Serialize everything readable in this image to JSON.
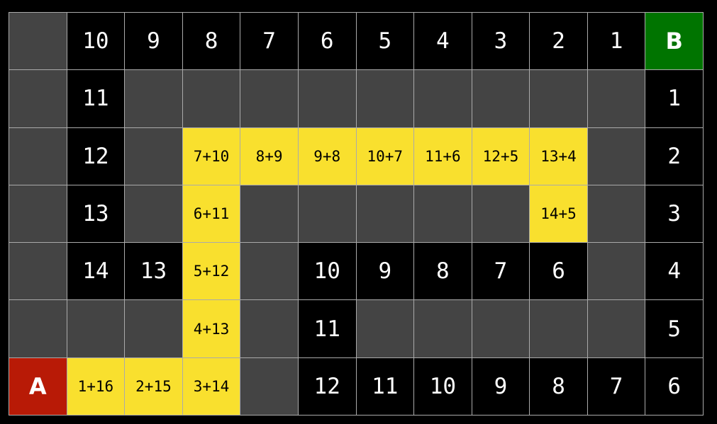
{
  "colors": {
    "wall": "#444444",
    "open": "#000000",
    "path": "#f9e02e",
    "start": "#b81a06",
    "goal": "#007400"
  },
  "grid": [
    [
      [
        "",
        "wall"
      ],
      [
        "10",
        "open"
      ],
      [
        "9",
        "open"
      ],
      [
        "8",
        "open"
      ],
      [
        "7",
        "open"
      ],
      [
        "6",
        "open"
      ],
      [
        "5",
        "open"
      ],
      [
        "4",
        "open"
      ],
      [
        "3",
        "open"
      ],
      [
        "2",
        "open"
      ],
      [
        "1",
        "open"
      ],
      [
        "B",
        "goal"
      ]
    ],
    [
      [
        "",
        "wall"
      ],
      [
        "11",
        "open"
      ],
      [
        "",
        "wall"
      ],
      [
        "",
        "wall"
      ],
      [
        "",
        "wall"
      ],
      [
        "",
        "wall"
      ],
      [
        "",
        "wall"
      ],
      [
        "",
        "wall"
      ],
      [
        "",
        "wall"
      ],
      [
        "",
        "wall"
      ],
      [
        "",
        "wall"
      ],
      [
        "1",
        "open"
      ]
    ],
    [
      [
        "",
        "wall"
      ],
      [
        "12",
        "open"
      ],
      [
        "",
        "wall"
      ],
      [
        "7+10",
        "path"
      ],
      [
        "8+9",
        "path"
      ],
      [
        "9+8",
        "path"
      ],
      [
        "10+7",
        "path"
      ],
      [
        "11+6",
        "path"
      ],
      [
        "12+5",
        "path"
      ],
      [
        "13+4",
        "path"
      ],
      [
        "",
        "wall"
      ],
      [
        "2",
        "open"
      ]
    ],
    [
      [
        "",
        "wall"
      ],
      [
        "13",
        "open"
      ],
      [
        "",
        "wall"
      ],
      [
        "6+11",
        "path"
      ],
      [
        "",
        "wall"
      ],
      [
        "",
        "wall"
      ],
      [
        "",
        "wall"
      ],
      [
        "",
        "wall"
      ],
      [
        "",
        "wall"
      ],
      [
        "14+5",
        "path"
      ],
      [
        "",
        "wall"
      ],
      [
        "3",
        "open"
      ]
    ],
    [
      [
        "",
        "wall"
      ],
      [
        "14",
        "open"
      ],
      [
        "13",
        "open"
      ],
      [
        "5+12",
        "path"
      ],
      [
        "",
        "wall"
      ],
      [
        "10",
        "open"
      ],
      [
        "9",
        "open"
      ],
      [
        "8",
        "open"
      ],
      [
        "7",
        "open"
      ],
      [
        "6",
        "open"
      ],
      [
        "",
        "wall"
      ],
      [
        "4",
        "open"
      ]
    ],
    [
      [
        "",
        "wall"
      ],
      [
        "",
        "wall"
      ],
      [
        "",
        "wall"
      ],
      [
        "4+13",
        "path"
      ],
      [
        "",
        "wall"
      ],
      [
        "11",
        "open"
      ],
      [
        "",
        "wall"
      ],
      [
        "",
        "wall"
      ],
      [
        "",
        "wall"
      ],
      [
        "",
        "wall"
      ],
      [
        "",
        "wall"
      ],
      [
        "5",
        "open"
      ]
    ],
    [
      [
        "A",
        "start"
      ],
      [
        "1+16",
        "path"
      ],
      [
        "2+15",
        "path"
      ],
      [
        "3+14",
        "path"
      ],
      [
        "",
        "wall"
      ],
      [
        "12",
        "open"
      ],
      [
        "11",
        "open"
      ],
      [
        "10",
        "open"
      ],
      [
        "9",
        "open"
      ],
      [
        "8",
        "open"
      ],
      [
        "7",
        "open"
      ],
      [
        "6",
        "open"
      ]
    ]
  ]
}
